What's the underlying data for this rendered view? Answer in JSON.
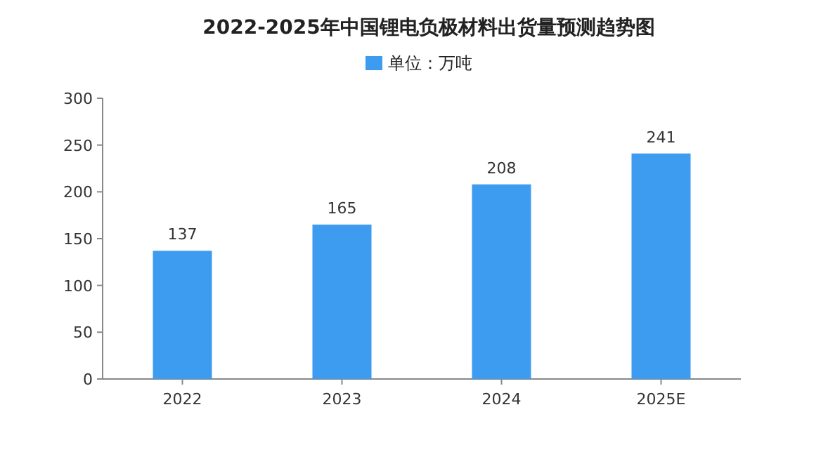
{
  "chart_data": {
    "type": "bar",
    "title": "2022-2025年中国锂电负极材料出货量预测趋势图",
    "categories": [
      "2022",
      "2023",
      "2024",
      "2025E"
    ],
    "series": [
      {
        "name": "单位：万吨",
        "color": "#3d9cf0",
        "values": [
          137,
          165,
          208,
          241
        ]
      }
    ],
    "ylim": [
      0,
      300
    ],
    "yticks": [
      0,
      50,
      100,
      150,
      200,
      250,
      300
    ],
    "data_labels": true,
    "legend": "top",
    "grid": false
  }
}
